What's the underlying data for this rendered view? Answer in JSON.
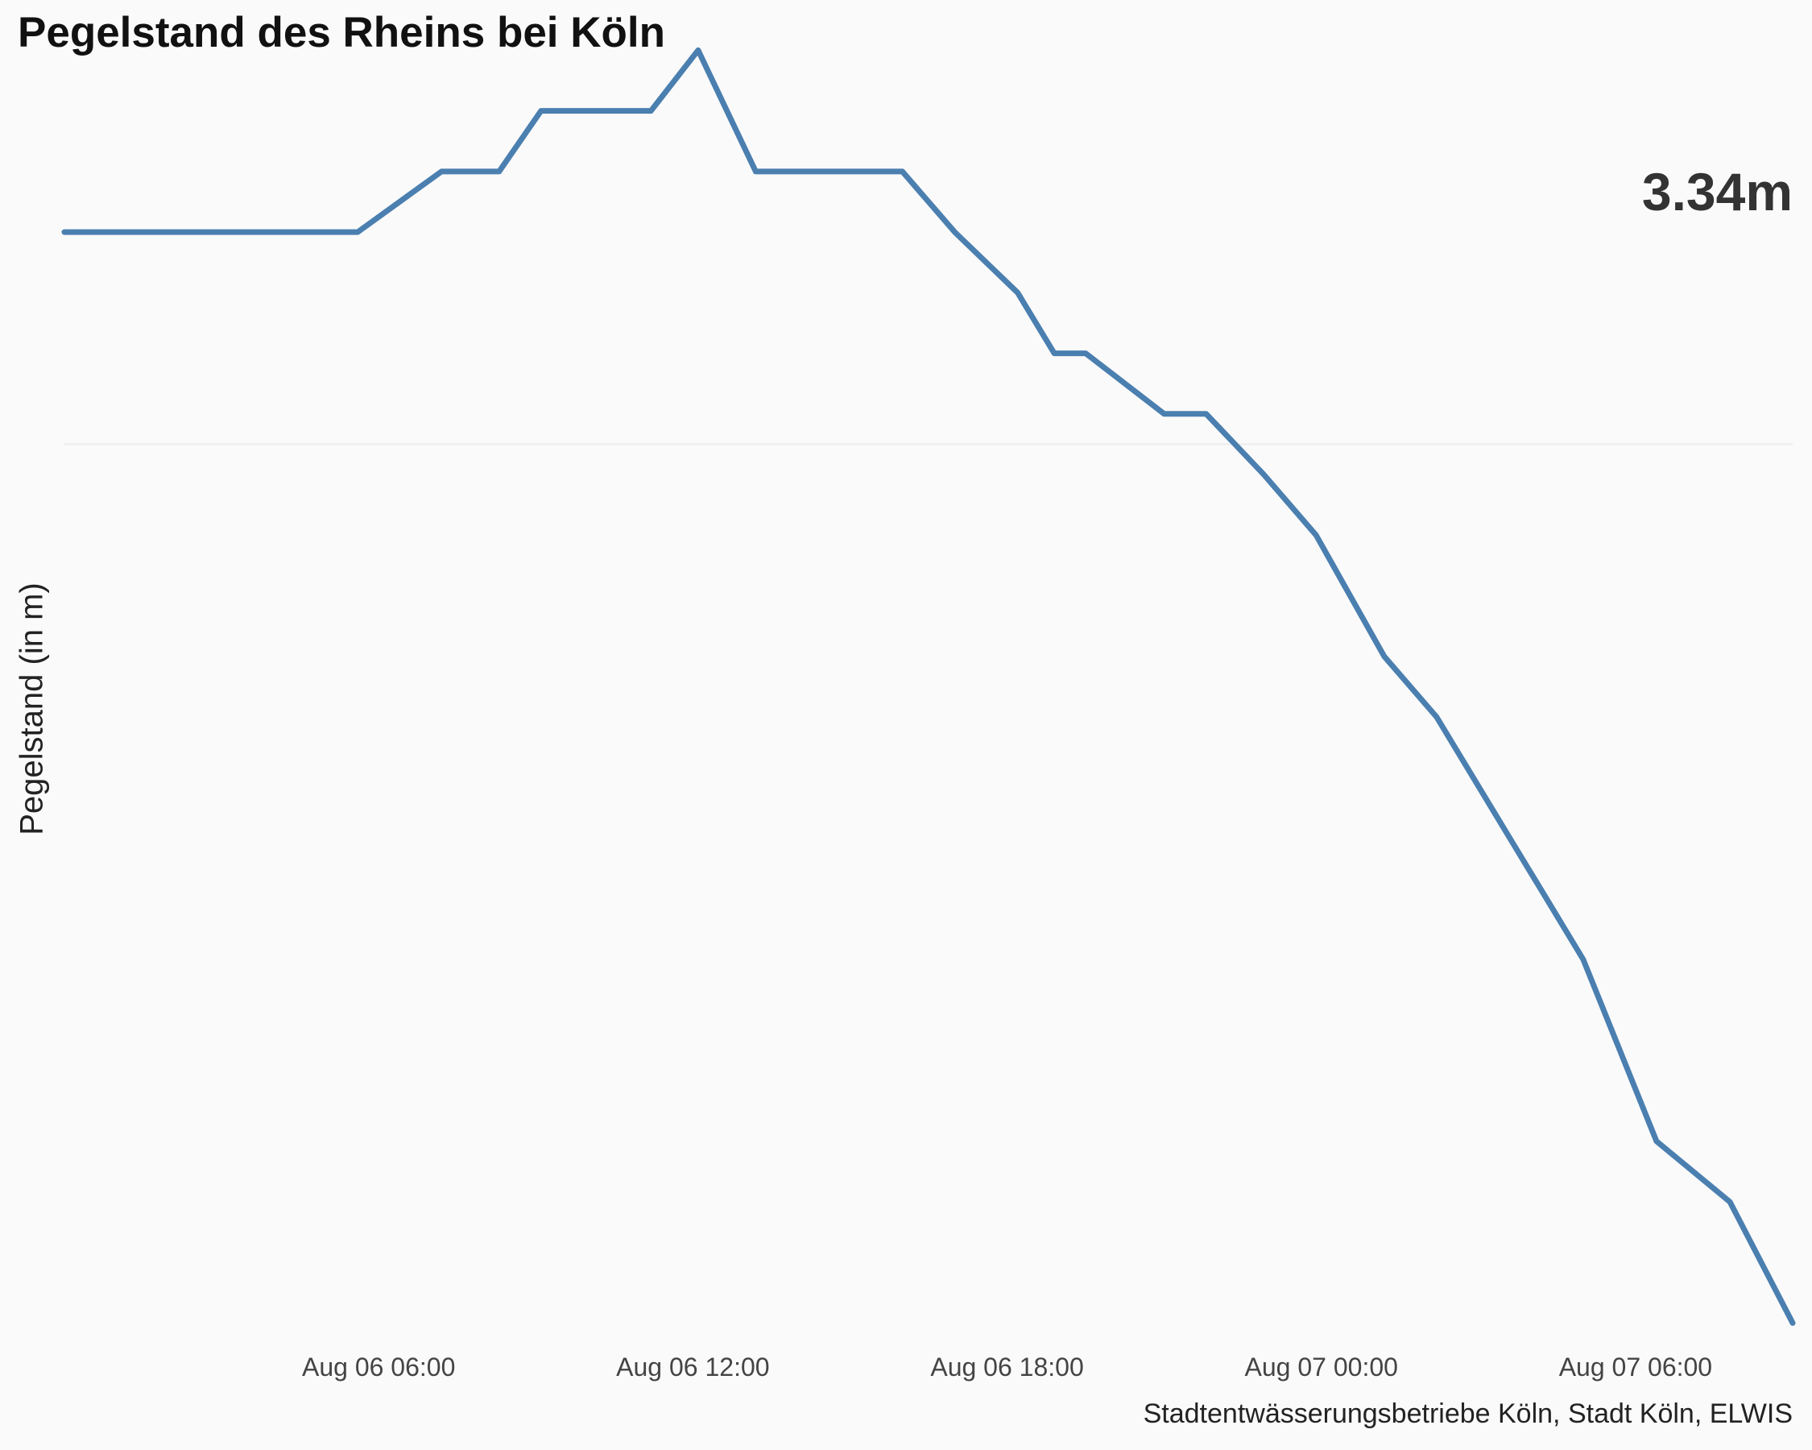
{
  "chart_data": {
    "type": "line",
    "title": "Pegelstand des Rheins bei Köln",
    "ylabel": "Pegelstand (in m)",
    "xlabel": "",
    "caption": "Stadtentwässerungsbetriebe Köln, Stadt Köln, ELWIS",
    "current_value_label": "3.34m",
    "x_ticks": [
      "Aug 06 06:00",
      "Aug 06 12:00",
      "Aug 06 18:00",
      "Aug 07 00:00",
      "Aug 07 06:00"
    ],
    "x_tick_hours": [
      6,
      12,
      18,
      24,
      30
    ],
    "xlim_hours": [
      0,
      33
    ],
    "ylim": [
      3.335,
      3.356
    ],
    "y_gridlines": [
      3.35
    ],
    "grid": true,
    "colors": {
      "line": "#4a7fb0",
      "background": "#fafafa",
      "grid": "#ececec"
    },
    "series": [
      {
        "x_hours": [
          0.0,
          1.0,
          2.0,
          3.0,
          4.0,
          5.0,
          5.6,
          7.2,
          8.3,
          9.1,
          10.3,
          11.2,
          12.1,
          13.2,
          14.2,
          15.3,
          16.0,
          17.0,
          18.2,
          18.9,
          19.5,
          21.0,
          21.8,
          22.9,
          23.9,
          25.2,
          26.2,
          27.6,
          28.3,
          29.0,
          30.4,
          31.8,
          33.0
        ],
        "values": [
          3.3535,
          3.3535,
          3.3535,
          3.3535,
          3.3535,
          3.3535,
          3.3535,
          3.3545,
          3.3545,
          3.3555,
          3.3555,
          3.3555,
          3.3565,
          3.3545,
          3.3545,
          3.3545,
          3.3545,
          3.3535,
          3.3525,
          3.3515,
          3.3515,
          3.3505,
          3.3505,
          3.3495,
          3.3485,
          3.3465,
          3.3455,
          3.3435,
          3.3425,
          3.3415,
          3.3385,
          3.3375,
          3.3355
        ]
      }
    ]
  }
}
